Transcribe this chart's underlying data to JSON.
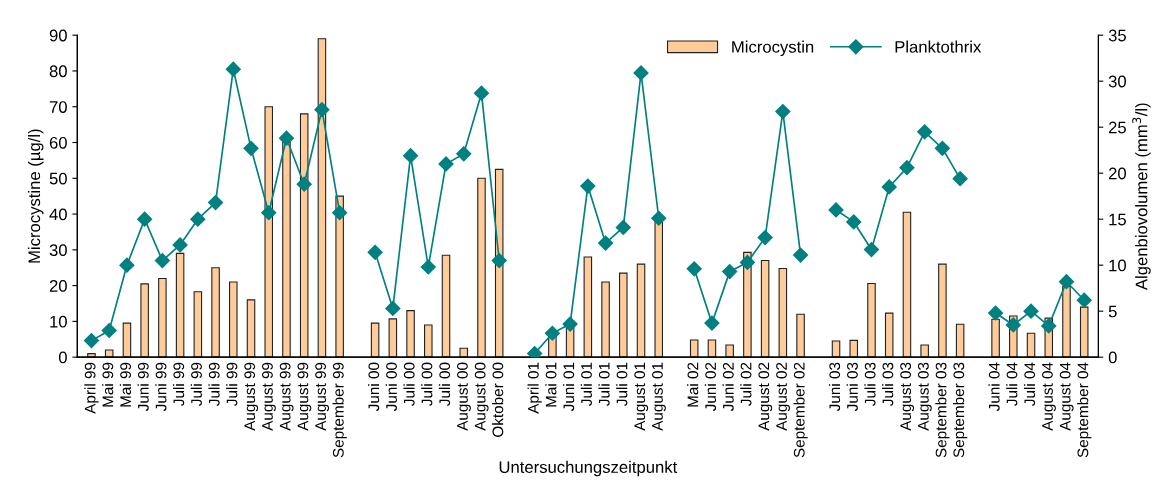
{
  "chart_data": {
    "type": "bar",
    "xlabel": "Untersuchungszeitpunkt",
    "ylabel": "Microcystine (µg/l)",
    "y2label": "Algenbiovolumen (mm$^{3}$/l)",
    "categories": [
      "April 99",
      "Mai 99",
      "Mai 99",
      "Juni 99",
      "Juni 99",
      "Juli 99",
      "Juli 99",
      "Juli 99",
      "Juli 99",
      "August 99",
      "August 99",
      "August 99",
      "August 99",
      "August 99",
      "September 99",
      null,
      "Juni 00",
      "Juni 00",
      "Juli 00",
      "Juli 00",
      "Juli 00",
      "August 00",
      "August 00",
      "Oktober 00",
      null,
      "April 01",
      "Mai 01",
      "Juni 01",
      "Juli 01",
      "Juli 01",
      "Juli 01",
      "August 01",
      "August 01",
      null,
      "Mai 02",
      "Juni 02",
      "Juni 02",
      "Juli 02",
      "August 02",
      "August 02",
      "September 02",
      null,
      "Juni 03",
      "Juni 03",
      "Juli 03",
      "Juli 03",
      "August 03",
      "August 03",
      "September 03",
      "September 03",
      null,
      "Juni 04",
      "Juli 04",
      "Juli 04",
      "August 04",
      "August 04",
      "September 04"
    ],
    "series": [
      {
        "name": "Microcystin",
        "color": "#ffcc99",
        "values": [
          1,
          2,
          9.5,
          20.5,
          22,
          29,
          18.3,
          25,
          21,
          16,
          70,
          60,
          68,
          89,
          45,
          null,
          9.5,
          10.7,
          13,
          9,
          28.5,
          2.5,
          50,
          52.5,
          null,
          null,
          6.7,
          9,
          28,
          21,
          23.5,
          26,
          38,
          null,
          4.8,
          4.8,
          3.4,
          29.3,
          27,
          24.8,
          12,
          null,
          4.5,
          4.7,
          20.6,
          12.3,
          40.5,
          3.4,
          26,
          9.2,
          null,
          10.6,
          11.5,
          6.7,
          10.9,
          19.8,
          14
        ]
      },
      {
        "name": "Planktothrix",
        "type": "line",
        "axis": "y2",
        "color": "#008080",
        "marker": "diamond",
        "values": [
          1.8,
          2.9,
          10,
          15,
          10.5,
          12.2,
          15,
          16.8,
          31.3,
          22.7,
          15.7,
          23.8,
          18.8,
          26.9,
          15.7,
          null,
          11.4,
          5.3,
          21.9,
          9.8,
          21,
          22.1,
          28.7,
          10.5,
          null,
          0.4,
          2.6,
          3.6,
          18.6,
          12.4,
          14.1,
          30.9,
          15.1,
          null,
          9.6,
          3.7,
          9.3,
          10.3,
          13,
          26.7,
          11.1,
          null,
          16,
          14.7,
          11.7,
          18.5,
          20.6,
          24.5,
          22.7,
          19.4,
          null,
          4.8,
          3.5,
          5,
          3.4,
          8.2,
          6.2
        ]
      }
    ],
    "ylim": [
      0,
      90
    ],
    "yticks": [
      0,
      10,
      20,
      30,
      40,
      50,
      60,
      70,
      80,
      90
    ],
    "y2lim": [
      0,
      35
    ],
    "y2ticks": [
      0,
      5,
      10,
      15,
      20,
      25,
      30,
      35
    ],
    "grid": false,
    "legend": "top right"
  }
}
